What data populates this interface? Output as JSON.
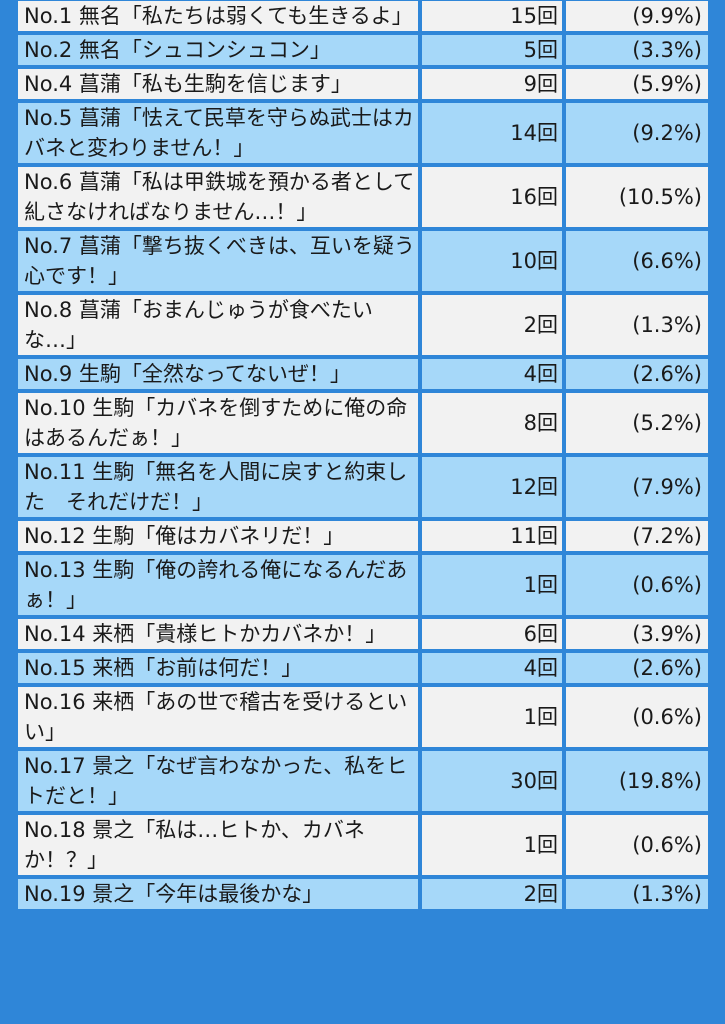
{
  "colors": {
    "background": "#2f86d8",
    "row_light": "#f2f2f2",
    "row_blue": "#a6d8f9"
  },
  "rows": [
    {
      "quote": "No.1 無名「私たちは弱くても生きるよ」",
      "votes": "15回",
      "percent": "(9.9%)"
    },
    {
      "quote": "No.2 無名「シュコンシュコン」",
      "votes": "5回",
      "percent": "(3.3%)"
    },
    {
      "quote": "No.4 菖蒲「私も生駒を信じます」",
      "votes": "9回",
      "percent": "(5.9%)"
    },
    {
      "quote": "No.5 菖蒲「怯えて民草を守らぬ武士はカバネと変わりません！」",
      "votes": "14回",
      "percent": "(9.2%)"
    },
    {
      "quote": "No.6 菖蒲「私は甲鉄城を預かる者として糺さなければなりません…！」",
      "votes": "16回",
      "percent": "(10.5%)"
    },
    {
      "quote": "No.7 菖蒲「撃ち抜くべきは、互いを疑う心です！」",
      "votes": "10回",
      "percent": "(6.6%)"
    },
    {
      "quote": "No.8 菖蒲「おまんじゅうが食べたいな…」",
      "votes": "2回",
      "percent": "(1.3%)"
    },
    {
      "quote": "No.9 生駒「全然なってないぜ！」",
      "votes": "4回",
      "percent": "(2.6%)"
    },
    {
      "quote": "No.10 生駒「カバネを倒すために俺の命はあるんだぁ！」",
      "votes": "8回",
      "percent": "(5.2%)"
    },
    {
      "quote": "No.11 生駒「無名を人間に戻すと約束した　それだけだ！」",
      "votes": "12回",
      "percent": "(7.9%)"
    },
    {
      "quote": "No.12 生駒「俺はカバネリだ！」",
      "votes": "11回",
      "percent": "(7.2%)"
    },
    {
      "quote": "No.13 生駒「俺の誇れる俺になるんだあぁ！」",
      "votes": "1回",
      "percent": "(0.6%)"
    },
    {
      "quote": "No.14 来栖「貴様ヒトかカバネか！」",
      "votes": "6回",
      "percent": "(3.9%)"
    },
    {
      "quote": "No.15 来栖「お前は何だ！」",
      "votes": "4回",
      "percent": "(2.6%)"
    },
    {
      "quote": "No.16 来栖「あの世で稽古を受けるといい」",
      "votes": "1回",
      "percent": "(0.6%)"
    },
    {
      "quote": "No.17 景之「なぜ言わなかった、私をヒトだと！」",
      "votes": "30回",
      "percent": "(19.8%)"
    },
    {
      "quote": "No.18 景之「私は…ヒトか、カバネか！？」",
      "votes": "1回",
      "percent": "(0.6%)"
    },
    {
      "quote": "No.19 景之「今年は最後かな」",
      "votes": "2回",
      "percent": "(1.3%)"
    }
  ]
}
